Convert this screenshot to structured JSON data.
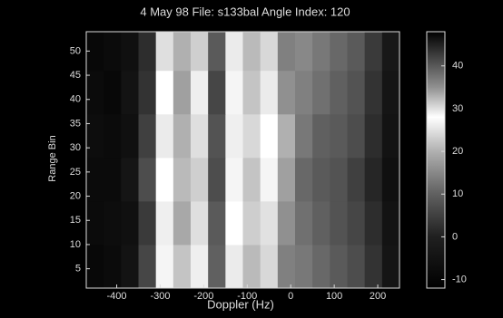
{
  "chart_data": {
    "type": "heatmap",
    "title": "4 May 98 File: s133bal Angle Index: 120",
    "xlabel": "Doppler (Hz)",
    "ylabel": "Range Bin",
    "xlim": [
      -470,
      250
    ],
    "xticks": [
      -400,
      -300,
      -200,
      -100,
      0,
      100,
      200
    ],
    "ylim": [
      1,
      54
    ],
    "yticks": [
      5,
      10,
      15,
      20,
      25,
      30,
      35,
      40,
      45,
      50
    ],
    "x_edges": [
      -470,
      -430,
      -390,
      -350,
      -310,
      -270,
      -230,
      -190,
      -150,
      -110,
      -70,
      -30,
      10,
      50,
      90,
      130,
      170,
      210,
      250
    ],
    "y_edges": [
      1,
      10,
      19,
      28,
      37,
      46,
      54
    ],
    "z": [
      [
        -9,
        -8,
        -5,
        6,
        27,
        22,
        29,
        10,
        26,
        21,
        24,
        14,
        13,
        11,
        9,
        7,
        3,
        -4
      ],
      [
        -8,
        -7,
        -6,
        4,
        29,
        19,
        30,
        9,
        28,
        23,
        25,
        16,
        12,
        10,
        8,
        6,
        2,
        -5
      ],
      [
        -8,
        -8,
        -4,
        7,
        28,
        21,
        31,
        7,
        27,
        22,
        27,
        18,
        11,
        9,
        8,
        5,
        1,
        -6
      ],
      [
        -7,
        -8,
        -6,
        5,
        26,
        20,
        30,
        8,
        29,
        24,
        28,
        20,
        13,
        10,
        9,
        7,
        2,
        -5
      ],
      [
        -8,
        -9,
        -5,
        3,
        28,
        18,
        29,
        6,
        27,
        22,
        26,
        16,
        14,
        12,
        10,
        8,
        3,
        -4
      ],
      [
        -9,
        -8,
        -6,
        2,
        30,
        20,
        31,
        9,
        26,
        21,
        24,
        14,
        15,
        13,
        11,
        9,
        4,
        -3
      ]
    ],
    "clim": [
      -12,
      48
    ],
    "cticks": [
      -10,
      0,
      10,
      20,
      30,
      40
    ],
    "colormap": [
      {
        "value": -12,
        "color": "#000000"
      },
      {
        "value": 0,
        "color": "#202020"
      },
      {
        "value": 10,
        "color": "#606060"
      },
      {
        "value": 20,
        "color": "#b0b0b0"
      },
      {
        "value": 28,
        "color": "#ffffff"
      },
      {
        "value": 35,
        "color": "#909090"
      },
      {
        "value": 48,
        "color": "#000000"
      }
    ]
  }
}
